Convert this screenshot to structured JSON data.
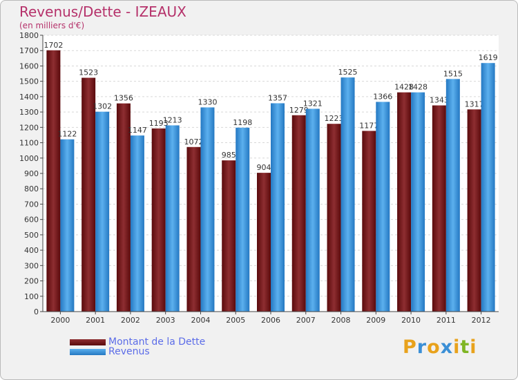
{
  "chart_data": {
    "type": "bar",
    "title": "Revenus/Dette - IZEAUX",
    "subtitle": "(en milliers d'€)",
    "categories": [
      "2000",
      "2001",
      "2002",
      "2003",
      "2004",
      "2005",
      "2006",
      "2007",
      "2008",
      "2009",
      "2010",
      "2011",
      "2012"
    ],
    "series": [
      {
        "name": "Montant de la Dette",
        "values": [
          1702,
          1523,
          1356,
          1193,
          1072,
          985,
          904,
          1279,
          1223,
          1177,
          1428,
          1343,
          1317
        ],
        "color": "#7a1f22"
      },
      {
        "name": "Revenus",
        "values": [
          1122,
          1302,
          1147,
          1213,
          1330,
          1198,
          1357,
          1321,
          1525,
          1366,
          1428,
          1515,
          1619
        ],
        "color": "#3d9ee6"
      }
    ],
    "ylim": [
      0,
      1800
    ],
    "ystep": 100,
    "grid": true,
    "legend": "bottom-left"
  },
  "branding": {
    "logo": [
      "P",
      "r",
      "o",
      "x",
      "i",
      "t",
      "i"
    ]
  },
  "colors": {
    "title": "#b5316a",
    "legend_text": "#5b6ce8",
    "logo": [
      "#e8a21c",
      "#3b8fd6",
      "#e8a21c",
      "#3b8fd6",
      "#e8a21c",
      "#7fb524",
      "#e8a21c"
    ]
  }
}
